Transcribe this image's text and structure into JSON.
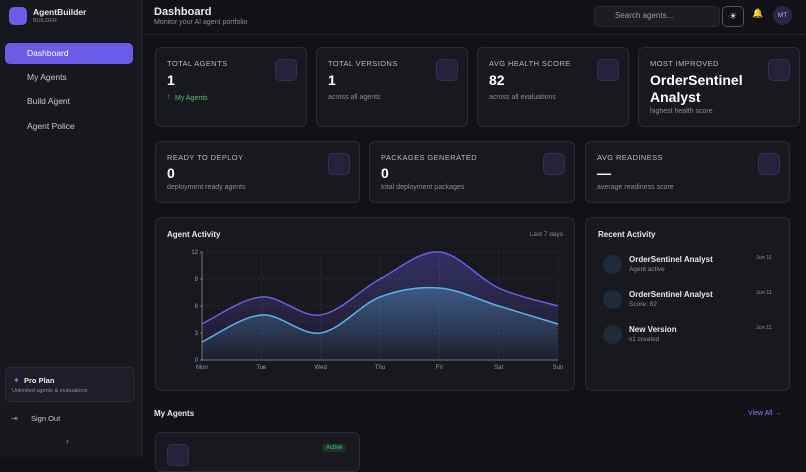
{
  "sidebar": {
    "brand": "AgentBuilder",
    "brand_sub": "BUILDER",
    "nav": [
      "Dashboard",
      "My Agents",
      "Build Agent",
      "Agent Police"
    ],
    "plan_title": "Pro Plan",
    "plan_desc": "Unlimited agents & evaluations",
    "sign_out": "Sign Out"
  },
  "header": {
    "title": "Dashboard",
    "subtitle": "Monitor your AI agent portfolio",
    "search": "Search agents...",
    "avatar": "MT"
  },
  "stats_top": [
    {
      "label": "TOTAL AGENTS",
      "value": "1",
      "sub": "My Agents"
    },
    {
      "label": "TOTAL VERSIONS",
      "value": "1",
      "sub": "across all agents"
    },
    {
      "label": "AVG HEALTH SCORE",
      "value": "82",
      "sub": "across all evaluations"
    },
    {
      "label": "MOST IMPROVED",
      "value": "OrderSentinel Analyst",
      "sub": "highest health score"
    }
  ],
  "stats_bottom": [
    {
      "label": "READY TO DEPLOY",
      "value": "0",
      "sub": "deployment ready agents"
    },
    {
      "label": "PACKAGES GENERATED",
      "value": "0",
      "sub": "total deployment packages"
    },
    {
      "label": "AVG READINESS",
      "value": "—",
      "sub": "average readiness score"
    }
  ],
  "chart_data": {
    "type": "line",
    "title": "Agent Activity",
    "range_label": "Last 7 days",
    "categories": [
      "Mon",
      "Tue",
      "Wed",
      "Thu",
      "Fri",
      "Sat",
      "Sun"
    ],
    "series": [
      {
        "color": "#6b5ce7",
        "values": [
          4,
          7,
          5,
          9,
          12,
          8,
          6
        ]
      },
      {
        "color": "#5ab4e6",
        "values": [
          2,
          5,
          3,
          7,
          8,
          6,
          4
        ]
      }
    ],
    "ylim": [
      0,
      12
    ],
    "yticks": [
      0,
      3,
      6,
      9,
      12
    ],
    "grid": true
  },
  "recent": {
    "title": "Recent Activity",
    "items": [
      {
        "title": "OrderSentinel Analyst",
        "desc": "Agent active",
        "date": "Jun 11"
      },
      {
        "title": "OrderSentinel Analyst",
        "desc": "Score: 82",
        "date": "Jun 11"
      },
      {
        "title": "New Version",
        "desc": "v1 created",
        "date": "Jun 11"
      }
    ]
  },
  "agents": {
    "title": "My Agents",
    "view_all": "View All",
    "badge": "Active"
  }
}
